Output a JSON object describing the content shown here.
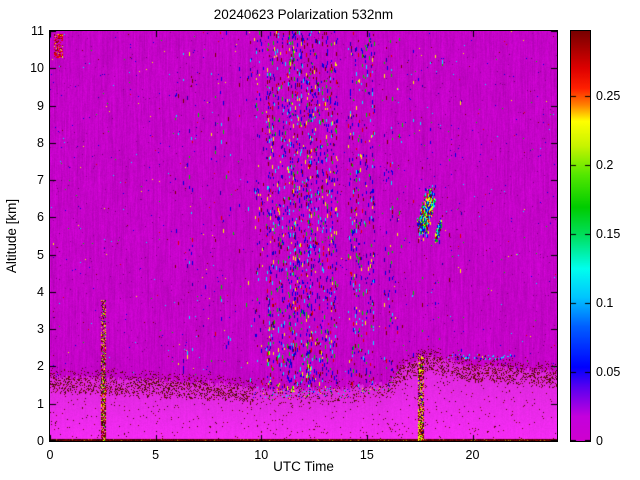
{
  "chart_data": {
    "type": "heatmap",
    "title": "20240623 Polarization 532nm",
    "xlabel": "UTC Time",
    "ylabel": "Altitude [km]",
    "xlim": [
      0,
      24
    ],
    "ylim": [
      0,
      11
    ],
    "x_ticks": [
      0,
      5,
      10,
      15,
      20
    ],
    "y_ticks": [
      0,
      1,
      2,
      3,
      4,
      5,
      6,
      7,
      8,
      9,
      10,
      11
    ],
    "colorbar": {
      "min": 0,
      "max": 0.297,
      "ticks": [
        0,
        0.05,
        0.1,
        0.15,
        0.2,
        0.25
      ],
      "stops": [
        [
          0,
          "#cf00cf"
        ],
        [
          0.06,
          "#c400dd"
        ],
        [
          0.13,
          "#5a00f0"
        ],
        [
          0.18,
          "#0000ff"
        ],
        [
          0.28,
          "#0060ff"
        ],
        [
          0.35,
          "#00c4ff"
        ],
        [
          0.42,
          "#00ffee"
        ],
        [
          0.5,
          "#00e060"
        ],
        [
          0.57,
          "#00cc00"
        ],
        [
          0.65,
          "#55e800"
        ],
        [
          0.72,
          "#c8f400"
        ],
        [
          0.78,
          "#ffff00"
        ],
        [
          0.82,
          "#ff8000"
        ],
        [
          0.86,
          "#ff2000"
        ],
        [
          0.91,
          "#dd0000"
        ],
        [
          1,
          "#780000"
        ]
      ]
    },
    "colors": {
      "figure_background": "#ffffff",
      "clear_air": "#c403c8",
      "boundary_layer": "#fc1efc",
      "ground_line": "#4a0000",
      "axis": "#000000"
    },
    "boundary_layer_top_km": [
      [
        0,
        1.75
      ],
      [
        2,
        1.7
      ],
      [
        4,
        1.66
      ],
      [
        6,
        1.62
      ],
      [
        8,
        1.56
      ],
      [
        9.5,
        1.46
      ],
      [
        10,
        1.4
      ],
      [
        13,
        1.4
      ],
      [
        14,
        1.44
      ],
      [
        15,
        1.5
      ],
      [
        16,
        1.56
      ],
      [
        16.8,
        2.1
      ],
      [
        17.5,
        2.2
      ],
      [
        18,
        2.3
      ],
      [
        19,
        2.15
      ],
      [
        20,
        2.0
      ],
      [
        21,
        2.05
      ],
      [
        22,
        1.95
      ],
      [
        23,
        1.9
      ],
      [
        24,
        1.85
      ]
    ],
    "noise_stripes": [
      [
        9.7,
        10.1,
        5
      ],
      [
        10.2,
        13.6,
        16
      ],
      [
        14.1,
        15.35,
        11
      ],
      [
        15.8,
        16.35,
        5
      ],
      [
        5.5,
        9.7,
        2
      ],
      [
        16.4,
        19.5,
        2
      ]
    ],
    "features": {
      "cloud": {
        "x": 17.8,
        "y": 6.15,
        "rx": 0.55,
        "ry": 1.0
      },
      "cloud2": {
        "x": 18.35,
        "y": 5.65,
        "rx": 0.22,
        "ry": 0.45
      },
      "spike1": {
        "x0": 2.42,
        "x1": 2.6,
        "top_km": 3.78
      },
      "spike2": {
        "x0": 17.42,
        "x1": 17.68,
        "top_km": 2.35
      },
      "aerosol_streak": {
        "x0": 18.85,
        "x1": 21.95,
        "y": 2.28
      },
      "corner_blob": {
        "x0": 0.2,
        "x1": 0.55,
        "y0": 10.3,
        "y1": 10.92
      }
    }
  }
}
